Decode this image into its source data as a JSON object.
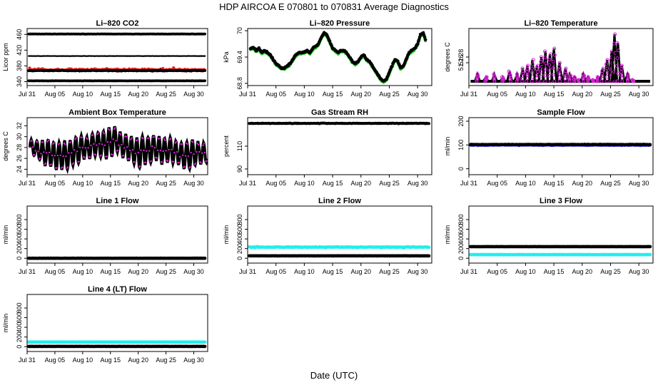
{
  "title": "HDP    AIRCOA E    070801 to 070831    Average Diagnostics",
  "xlabel": "Date (UTC)",
  "x_tick_labels": [
    "Jul 31",
    "Aug 05",
    "Aug 10",
    "Aug 15",
    "Aug 20",
    "Aug 25",
    "Aug 30"
  ],
  "chart_data": [
    {
      "type": "scatter",
      "title": "Li–820 CO2",
      "ylabel": "Licor ppm",
      "ylim": [
        330,
        475
      ],
      "yticks": [
        340,
        380,
        420,
        460
      ],
      "xlim": [
        0,
        32.5
      ],
      "series": [
        {
          "name": "level 460",
          "color": "#000000",
          "kind": "flat",
          "y": 461,
          "x0": 0.3,
          "x1": 32,
          "noise": 0.5,
          "size": 1.9
        },
        {
          "name": "level 405",
          "color": "#000000",
          "kind": "flat",
          "y": 405,
          "x0": 0.3,
          "x1": 32,
          "noise": 0.4,
          "size": 1.2
        },
        {
          "name": "band 370",
          "color": "#e52222",
          "kind": "band",
          "y": 370,
          "x0": 0.3,
          "x1": 32,
          "noise": 3.5,
          "size": 2.1
        },
        {
          "name": "band 368",
          "color": "#000000",
          "kind": "band",
          "y": 368,
          "x0": 0.3,
          "x1": 32,
          "noise": 1.2,
          "size": 2.0
        },
        {
          "name": "level 342",
          "color": "#000000",
          "kind": "flat",
          "y": 342,
          "x0": 0.3,
          "x1": 32,
          "noise": 0.4,
          "size": 1.9
        }
      ]
    },
    {
      "type": "line",
      "title": "Li–820 Pressure",
      "ylabel": "kPa",
      "ylim": [
        68.75,
        70.05
      ],
      "yticks": [
        68.8,
        69.4,
        70.0
      ],
      "xlim": [
        0,
        32.5
      ],
      "x": [
        0.5,
        1,
        1.5,
        2,
        2.5,
        3,
        3.5,
        4,
        4.5,
        5,
        5.5,
        6,
        6.5,
        7,
        7.5,
        8,
        8.5,
        9,
        9.5,
        10,
        10.5,
        11,
        11.5,
        12,
        12.5,
        13,
        13.5,
        14,
        14.5,
        15,
        15.5,
        16,
        16.5,
        17,
        17.5,
        18,
        18.5,
        19,
        19.5,
        20,
        20.5,
        21,
        21.5,
        22,
        22.5,
        23,
        23.5,
        24,
        24.5,
        25,
        25.5,
        26,
        26.5,
        27,
        27.5,
        28,
        28.5,
        29,
        29.5,
        30,
        30.5,
        31,
        31.5
      ],
      "series": [
        {
          "name": "pressure green",
          "color": "#22cc22",
          "offset": -0.03,
          "size": 2.0,
          "values": [
            69.6,
            69.62,
            69.55,
            69.6,
            69.5,
            69.55,
            69.5,
            69.45,
            69.35,
            69.25,
            69.2,
            69.15,
            69.15,
            69.2,
            69.25,
            69.35,
            69.45,
            69.5,
            69.5,
            69.52,
            69.55,
            69.5,
            69.6,
            69.65,
            69.7,
            69.85,
            69.95,
            69.9,
            69.75,
            69.6,
            69.55,
            69.5,
            69.55,
            69.55,
            69.5,
            69.4,
            69.3,
            69.25,
            69.3,
            69.4,
            69.45,
            69.35,
            69.3,
            69.2,
            69.1,
            69.0,
            68.9,
            68.85,
            68.9,
            69.05,
            69.2,
            69.35,
            69.3,
            69.15,
            69.2,
            69.35,
            69.5,
            69.55,
            69.6,
            69.7,
            69.9,
            69.95,
            69.75
          ]
        },
        {
          "name": "pressure black",
          "color": "#000000",
          "offset": 0.0,
          "size": 2.3,
          "values": [
            69.6,
            69.62,
            69.55,
            69.6,
            69.5,
            69.55,
            69.5,
            69.45,
            69.35,
            69.25,
            69.2,
            69.15,
            69.15,
            69.2,
            69.25,
            69.35,
            69.45,
            69.5,
            69.5,
            69.52,
            69.55,
            69.5,
            69.6,
            69.65,
            69.7,
            69.85,
            69.95,
            69.9,
            69.75,
            69.6,
            69.55,
            69.5,
            69.55,
            69.55,
            69.5,
            69.4,
            69.3,
            69.25,
            69.3,
            69.4,
            69.45,
            69.35,
            69.3,
            69.2,
            69.1,
            69.0,
            68.9,
            68.85,
            68.9,
            69.05,
            69.2,
            69.35,
            69.3,
            69.15,
            69.2,
            69.35,
            69.5,
            69.55,
            69.6,
            69.7,
            69.9,
            69.95,
            69.75
          ]
        }
      ]
    },
    {
      "type": "scatter",
      "title": "Li–820 Temperature",
      "ylabel": "degrees C",
      "ylim": [
        51.18,
        51.38
      ],
      "yticks": [
        51.26,
        51.28
      ],
      "xlim": [
        0,
        32.5
      ],
      "series": [
        {
          "name": "temperature spikes",
          "color": "#dd22dd",
          "kind": "spikes",
          "base": 51.195,
          "peaks_x": [
            1.5,
            3,
            4.5,
            6,
            7.2,
            8.5,
            9.5,
            10.3,
            11.2,
            12,
            12.8,
            13.5,
            14.3,
            15,
            16,
            17,
            17.8,
            18.6,
            19.4,
            20.2,
            21,
            22,
            22.8,
            23.6,
            24.4,
            25.2,
            25.7,
            26.3,
            27,
            28,
            29
          ],
          "peaks_y": [
            51.22,
            51.21,
            51.22,
            51.21,
            51.23,
            51.22,
            51.24,
            51.25,
            51.27,
            51.25,
            51.28,
            51.3,
            51.29,
            51.31,
            51.26,
            51.24,
            51.22,
            51.21,
            51.2,
            51.22,
            51.21,
            51.2,
            51.21,
            51.24,
            51.27,
            51.3,
            51.36,
            51.33,
            51.25,
            51.22,
            51.2
          ]
        }
      ]
    },
    {
      "type": "line",
      "title": "Ambient Box Temperature",
      "ylabel": "degrees C",
      "ylim": [
        23,
        33.5
      ],
      "yticks": [
        24,
        26,
        28,
        30,
        32
      ],
      "xlim": [
        0,
        32.5
      ],
      "series": [
        {
          "name": "box temperature",
          "color": "#000000",
          "kind": "diurnal",
          "mid": [
            28,
            27.5,
            27,
            27,
            26.5,
            26.5,
            26.5,
            27,
            27.5,
            28,
            28,
            28.5,
            28.5,
            28.5,
            29,
            29.5,
            28.5,
            28,
            27.5,
            27,
            27.5,
            27.5,
            28,
            27.5,
            27.5,
            27.5,
            27,
            26.5,
            26.5,
            27,
            27,
            27
          ],
          "amp": [
            1.5,
            1.8,
            2.2,
            2.5,
            2.5,
            2.6,
            2.6,
            2.3,
            2.4,
            2.2,
            2.0,
            2.0,
            2.2,
            2.5,
            2.6,
            2.4,
            2.4,
            2.4,
            2.5,
            2.8,
            2.6,
            2.4,
            2.3,
            2.5,
            2.3,
            2.3,
            2.2,
            2.4,
            2.5,
            2.3,
            2.0,
            1.8
          ]
        }
      ]
    },
    {
      "type": "scatter",
      "title": "Gas Stream RH",
      "ylabel": "percent",
      "ylim": [
        85,
        135
      ],
      "yticks": [
        90,
        110
      ],
      "xlim": [
        0,
        32.5
      ],
      "series": [
        {
          "name": "rh",
          "color": "#000000",
          "kind": "flat",
          "y": 130,
          "x0": 0.3,
          "x1": 32,
          "noise": 0.4,
          "size": 2.0
        }
      ]
    },
    {
      "type": "scatter",
      "title": "Sample Flow",
      "ylabel": "ml/min",
      "ylim": [
        -25,
        215
      ],
      "yticks": [
        0,
        100,
        200
      ],
      "xlim": [
        0,
        32.5
      ],
      "series": [
        {
          "name": "sample blue",
          "color": "#2222cc",
          "kind": "band",
          "y": 99,
          "x0": 0.3,
          "x1": 32,
          "noise": 2.0,
          "size": 2.0
        },
        {
          "name": "sample black",
          "color": "#000000",
          "kind": "band",
          "y": 102,
          "x0": 0.3,
          "x1": 32,
          "noise": 1.2,
          "size": 2.2
        }
      ]
    },
    {
      "type": "scatter",
      "title": "Line 1 Flow",
      "ylabel": "ml/min",
      "ylim": [
        -100,
        1080
      ],
      "yticks": [
        0,
        200,
        400,
        600,
        800
      ],
      "xlim": [
        0,
        32.5
      ],
      "series": [
        {
          "name": "line1",
          "color": "#000000",
          "kind": "flat",
          "y": 0,
          "x0": 0.3,
          "x1": 32,
          "noise": 2,
          "size": 2.3
        }
      ]
    },
    {
      "type": "scatter",
      "title": "Line 2 Flow",
      "ylabel": "ml/min",
      "ylim": [
        -100,
        1080
      ],
      "yticks": [
        0,
        200,
        400,
        600,
        800
      ],
      "xlim": [
        0,
        32.5
      ],
      "series": [
        {
          "name": "line2 cyan",
          "color": "#22eeee",
          "kind": "band",
          "y": 230,
          "x0": 0.3,
          "x1": 32,
          "noise": 10,
          "size": 2.3
        },
        {
          "name": "line2 black",
          "color": "#000000",
          "kind": "flat",
          "y": 50,
          "x0": 0.3,
          "x1": 32,
          "noise": 2,
          "size": 2.3
        }
      ]
    },
    {
      "type": "scatter",
      "title": "Line 3 Flow",
      "ylabel": "ml/min",
      "ylim": [
        -100,
        1080
      ],
      "yticks": [
        0,
        200,
        400,
        600,
        800
      ],
      "xlim": [
        0,
        32.5
      ],
      "series": [
        {
          "name": "line3 black",
          "color": "#000000",
          "kind": "flat",
          "y": 240,
          "x0": 0.3,
          "x1": 32,
          "noise": 2,
          "size": 2.3
        },
        {
          "name": "line3 cyan",
          "color": "#22eeee",
          "kind": "flat",
          "y": 75,
          "x0": 0.3,
          "x1": 32,
          "noise": 2,
          "size": 2.3
        }
      ]
    },
    {
      "type": "scatter",
      "title": "Line 4 (LT) Flow",
      "ylabel": "ml/min",
      "ylim": [
        -100,
        1080
      ],
      "yticks": [
        0,
        200,
        400,
        600,
        800
      ],
      "xlim": [
        0,
        32.5
      ],
      "series": [
        {
          "name": "line4 cyan",
          "color": "#22eeee",
          "kind": "flat",
          "y": 95,
          "x0": 0.3,
          "x1": 32,
          "noise": 2,
          "size": 2.3
        },
        {
          "name": "line4 black",
          "color": "#000000",
          "kind": "flat",
          "y": 5,
          "x0": 0.3,
          "x1": 32,
          "noise": 2,
          "size": 2.3
        }
      ]
    }
  ]
}
